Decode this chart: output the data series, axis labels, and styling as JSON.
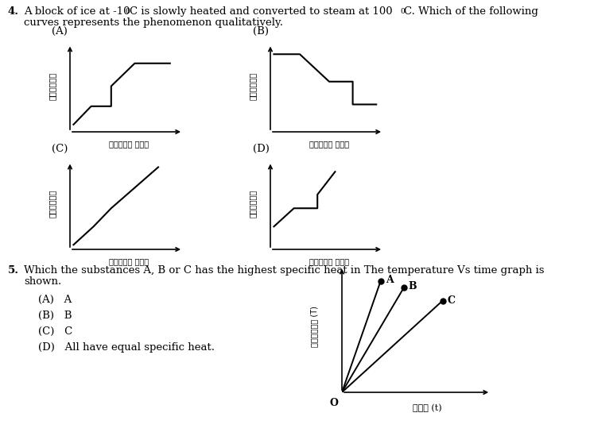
{
  "bg_color": "#ffffff",
  "y_label_gujarati": "તાપમાન",
  "x_label_gujarati": "આપેલી ામા",
  "y_label5_gujarati": "તાપમાન (T)",
  "x_label5": "સમય (t)",
  "graphA_x": [
    0.3,
    1.8,
    1.8,
    3.5,
    3.5,
    5.5,
    5.5,
    8.5
  ],
  "graphA_y": [
    0.8,
    2.8,
    2.8,
    2.8,
    5.0,
    7.5,
    7.5,
    7.5
  ],
  "graphB_x": [
    0.3,
    2.5,
    2.5,
    5.0,
    5.0,
    7.0,
    7.0,
    9.0
  ],
  "graphB_y": [
    8.5,
    8.5,
    8.5,
    5.5,
    5.5,
    5.5,
    3.0,
    3.0
  ],
  "graphC_x": [
    0.3,
    2.0,
    2.0,
    3.5,
    3.5,
    7.5
  ],
  "graphC_y": [
    0.5,
    2.5,
    2.5,
    4.5,
    4.5,
    9.0
  ],
  "graphD_x": [
    0.3,
    2.0,
    2.0,
    4.0,
    4.0,
    5.5
  ],
  "graphD_y": [
    2.5,
    4.5,
    4.5,
    4.5,
    6.0,
    8.5
  ],
  "line5_A": [
    [
      0,
      0
    ],
    [
      2.5,
      8.5
    ]
  ],
  "line5_B": [
    [
      0,
      0
    ],
    [
      4.0,
      8.0
    ]
  ],
  "line5_C": [
    [
      0,
      0
    ],
    [
      6.5,
      7.0
    ]
  ],
  "options_5": [
    "(A)   A",
    "(B)   B",
    "(C)   C",
    "(D)   All have equal specific heat."
  ]
}
